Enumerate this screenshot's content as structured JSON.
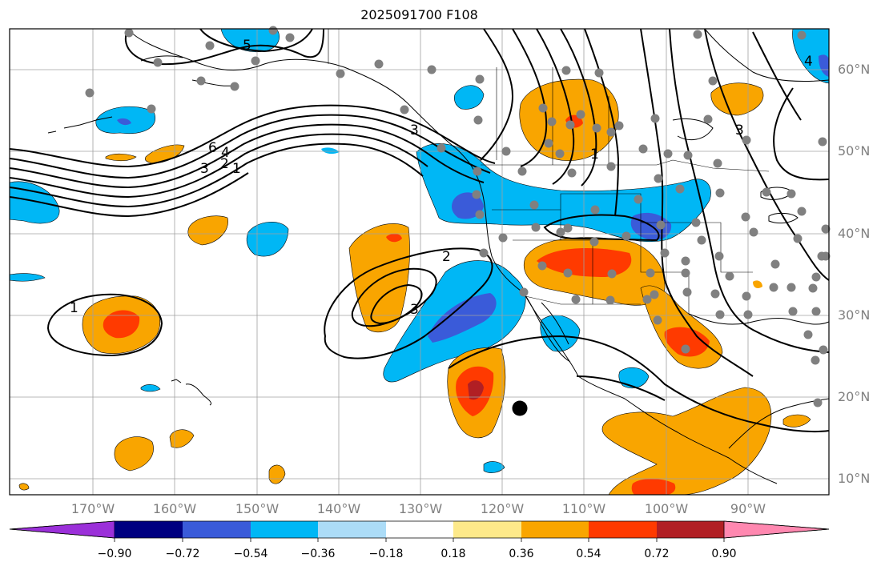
{
  "title": "2025091700 F108",
  "lat_labels": [
    "60°N",
    "50°N",
    "40°N",
    "30°N",
    "20°N",
    "10°N"
  ],
  "lon_labels": [
    "170°W",
    "160°W",
    "150°W",
    "140°W",
    "130°W",
    "120°W",
    "110°W",
    "100°W",
    "90°W"
  ],
  "contour_labels": [
    "5",
    "4",
    "6",
    "4",
    "3",
    "2",
    "1",
    "1",
    "2",
    "3",
    "1",
    "3",
    "3"
  ],
  "colorbar": {
    "ticks": [
      "−0.90",
      "−0.72",
      "−0.54",
      "−0.36",
      "−0.18",
      "0.18",
      "0.36",
      "0.54",
      "0.72",
      "0.90"
    ],
    "colors": {
      "below": "#9b30d9",
      "n090": "#000080",
      "n072": "#3a5bd9",
      "n054": "#00b7f5",
      "n036": "#acdcf7",
      "neutral": "#ffffff",
      "p018": "#fde98a",
      "p036": "#f9a500",
      "p054": "#ff3a00",
      "p072": "#b11f24",
      "above": "#ff88b0"
    }
  },
  "colors": {
    "station_dot": "#808080",
    "contour": "#000000",
    "grid": "#a0a0a0",
    "label": "#808080"
  }
}
